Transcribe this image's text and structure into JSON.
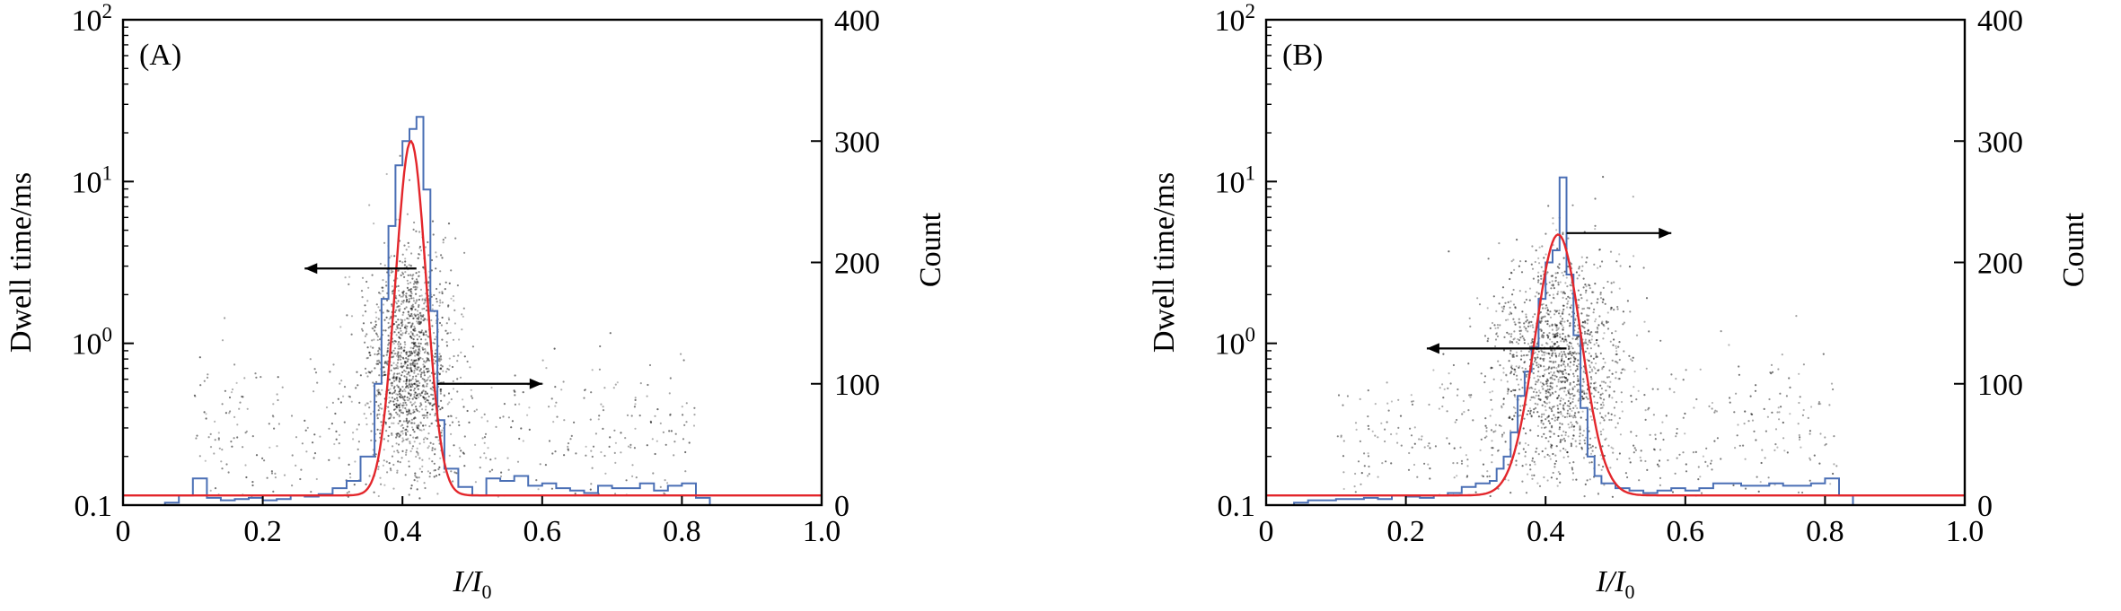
{
  "chart_data": [
    {
      "type": "scatter",
      "panel_label": "(A)",
      "xlabel_main": "I/I",
      "xlabel_sub": "0",
      "ylabel": "Dwell time/ms",
      "y2label": "Count",
      "xlim": [
        0,
        1.0
      ],
      "ylim": [
        0.1,
        100
      ],
      "y_scale": "log",
      "y2lim": [
        0,
        400
      ],
      "x_ticks": [
        "0",
        "0.2",
        "0.4",
        "0.6",
        "0.8",
        "1.0"
      ],
      "y_ticks": [
        {
          "base": "0.1",
          "sup": ""
        },
        {
          "base": "10",
          "sup": "0"
        },
        {
          "base": "10",
          "sup": "1"
        },
        {
          "base": "10",
          "sup": "2"
        }
      ],
      "y2_ticks": [
        "0",
        "100",
        "200",
        "300",
        "400"
      ],
      "scatter_center": 0.41,
      "scatter_spread": 0.03,
      "histogram": {
        "color": "#4a6fb5",
        "x": [
          0.06,
          0.08,
          0.1,
          0.12,
          0.14,
          0.16,
          0.18,
          0.2,
          0.22,
          0.24,
          0.26,
          0.28,
          0.3,
          0.32,
          0.34,
          0.36,
          0.37,
          0.38,
          0.39,
          0.4,
          0.41,
          0.42,
          0.43,
          0.44,
          0.45,
          0.46,
          0.48,
          0.5,
          0.52,
          0.54,
          0.56,
          0.58,
          0.6,
          0.62,
          0.64,
          0.66,
          0.68,
          0.7,
          0.72,
          0.74,
          0.76,
          0.78,
          0.8,
          0.82
        ],
        "counts": [
          2,
          8,
          22,
          6,
          4,
          5,
          6,
          4,
          5,
          8,
          7,
          9,
          14,
          20,
          40,
          100,
          170,
          230,
          280,
          300,
          310,
          320,
          260,
          160,
          70,
          30,
          15,
          8,
          22,
          20,
          24,
          16,
          18,
          14,
          12,
          10,
          16,
          14,
          14,
          18,
          12,
          16,
          18,
          6
        ]
      },
      "fit": {
        "color": "#e3262b",
        "baseline": 8,
        "amplitude": 292,
        "mean": 0.412,
        "sigma": 0.022
      }
    },
    {
      "type": "scatter",
      "panel_label": "(B)",
      "xlabel_main": "I/I",
      "xlabel_sub": "0",
      "ylabel": "Dwell time/ms",
      "y2label": "Count",
      "xlim": [
        0,
        1.0
      ],
      "ylim": [
        0.1,
        100
      ],
      "y_scale": "log",
      "y2lim": [
        0,
        400
      ],
      "x_ticks": [
        "0",
        "0.2",
        "0.4",
        "0.6",
        "0.8",
        "1.0"
      ],
      "y_ticks": [
        {
          "base": "0.1",
          "sup": ""
        },
        {
          "base": "10",
          "sup": "0"
        },
        {
          "base": "10",
          "sup": "1"
        },
        {
          "base": "10",
          "sup": "2"
        }
      ],
      "y2_ticks": [
        "0",
        "100",
        "200",
        "300",
        "400"
      ],
      "scatter_center": 0.42,
      "scatter_spread": 0.045,
      "histogram": {
        "color": "#4a6fb5",
        "x": [
          0.04,
          0.06,
          0.08,
          0.1,
          0.12,
          0.14,
          0.16,
          0.18,
          0.2,
          0.22,
          0.24,
          0.26,
          0.28,
          0.3,
          0.32,
          0.33,
          0.34,
          0.35,
          0.36,
          0.37,
          0.38,
          0.39,
          0.4,
          0.41,
          0.42,
          0.43,
          0.44,
          0.45,
          0.46,
          0.47,
          0.48,
          0.5,
          0.52,
          0.54,
          0.56,
          0.58,
          0.6,
          0.62,
          0.64,
          0.66,
          0.68,
          0.7,
          0.72,
          0.74,
          0.76,
          0.78,
          0.8,
          0.82
        ],
        "counts": [
          2,
          4,
          4,
          5,
          5,
          6,
          5,
          8,
          7,
          6,
          8,
          10,
          15,
          18,
          20,
          30,
          40,
          60,
          90,
          110,
          130,
          170,
          200,
          210,
          270,
          190,
          140,
          80,
          40,
          24,
          18,
          14,
          12,
          10,
          12,
          14,
          12,
          14,
          18,
          18,
          16,
          16,
          18,
          16,
          16,
          18,
          22,
          8
        ]
      },
      "fit": {
        "color": "#e3262b",
        "baseline": 8,
        "amplitude": 215,
        "mean": 0.418,
        "sigma": 0.033
      }
    }
  ]
}
